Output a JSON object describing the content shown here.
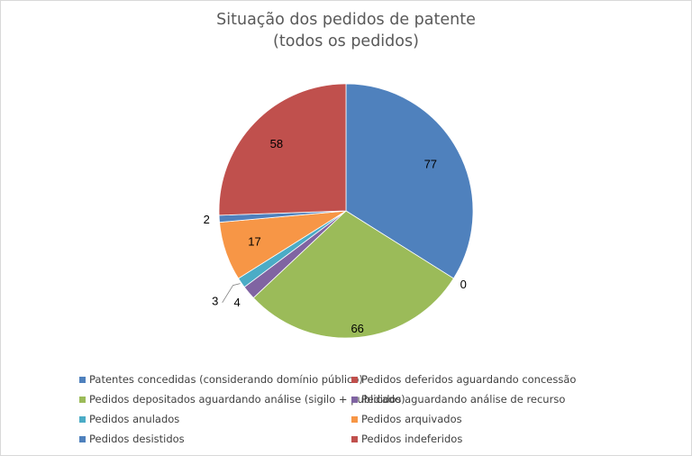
{
  "chart_data": {
    "type": "pie",
    "title": "Situação dos pedidos de patente",
    "subtitle": "(todos os pedidos)",
    "legend_position": "bottom",
    "slices": [
      {
        "label": "Patentes concedidas (considerando domínio público)",
        "value": 77,
        "color": "#4f81bd"
      },
      {
        "label": "Pedidos deferidos aguardando concessão",
        "value": 0,
        "color": "#c0504d"
      },
      {
        "label": "Pedidos depositados aguardando análise (sigilo + publicado)",
        "value": 66,
        "color": "#9bbb59"
      },
      {
        "label": "Pedidos aguardando análise de recurso",
        "value": 4,
        "color": "#8064a2"
      },
      {
        "label": "Pedidos anulados",
        "value": 3,
        "color": "#4bacc6"
      },
      {
        "label": "Pedidos arquivados",
        "value": 17,
        "color": "#f79646"
      },
      {
        "label": "Pedidos desistidos",
        "value": 2,
        "color": "#4f81bd"
      },
      {
        "label": "Pedidos indeferidos",
        "value": 58,
        "color": "#c0504d"
      }
    ]
  }
}
